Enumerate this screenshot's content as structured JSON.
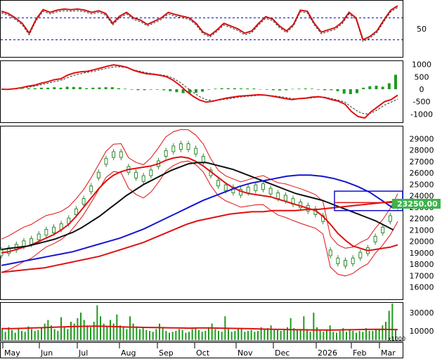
{
  "colors": {
    "price_up": "#2e8b2e",
    "ma_red": "#e01010",
    "ma_black": "#111111",
    "ma_blue": "#1414d0",
    "ma_long_red": "#e01010",
    "band": "#e01010",
    "rsi_line": "#d01010",
    "macd_bar": "#1e9a1e",
    "volume_bar": "#1e9a1e",
    "box_blue": "#1010d0",
    "price_badge_bg": "#3cb44b",
    "dotted": "#0000cc"
  },
  "chart_data": [
    {
      "type": "line",
      "panel": "rsi",
      "yticks": [
        50
      ],
      "reference_lines": [
        70,
        30
      ],
      "ylim": [
        0,
        100
      ],
      "series": [
        {
          "values": [
            82,
            78,
            70,
            60,
            42,
            68,
            85,
            80,
            84,
            86,
            85,
            86,
            84,
            80,
            83,
            78,
            60,
            73,
            80,
            70,
            66,
            58,
            64,
            70,
            80,
            76,
            73,
            70,
            60,
            44,
            38,
            48,
            60,
            55,
            50,
            42,
            46,
            60,
            72,
            68,
            55,
            46,
            58,
            84,
            82,
            60,
            44,
            48,
            52,
            62,
            80,
            70,
            30,
            36,
            46,
            66,
            84,
            92
          ]
        }
      ]
    },
    {
      "type": "line",
      "panel": "macd",
      "yticks": [
        1000,
        500,
        0,
        -500,
        -1000
      ],
      "ylim": [
        -1300,
        1100
      ],
      "series": [
        {
          "values": [
            0,
            -10,
            20,
            60,
            120,
            160,
            240,
            300,
            380,
            420,
            560,
            650,
            700,
            720,
            780,
            850,
            920,
            980,
            940,
            880,
            760,
            680,
            620,
            600,
            560,
            500,
            360,
            160,
            -80,
            -280,
            -440,
            -520,
            -480,
            -420,
            -360,
            -320,
            -280,
            -260,
            -240,
            -220,
            -240,
            -280,
            -330,
            -380,
            -420,
            -380,
            -360,
            -320,
            -300,
            -340,
            -420,
            -480,
            -600,
            -900,
            -1100,
            -1160,
            -900,
            -700,
            -500,
            -420,
            -240
          ]
        },
        {
          "values": [
            0,
            0,
            10,
            40,
            80,
            120,
            180,
            240,
            300,
            360,
            460,
            560,
            620,
            680,
            720,
            780,
            840,
            900,
            900,
            860,
            780,
            720,
            660,
            620,
            580,
            540,
            440,
            280,
            80,
            -120,
            -300,
            -420,
            -460,
            -440,
            -400,
            -360,
            -320,
            -290,
            -270,
            -250,
            -240,
            -260,
            -290,
            -330,
            -380,
            -390,
            -380,
            -350,
            -320,
            -320,
            -380,
            -440,
            -520,
            -720,
            -900,
            -1000,
            -960,
            -820,
            -640,
            -520,
            -400
          ]
        },
        {
          "values": [
            0,
            -10,
            10,
            20,
            40,
            40,
            60,
            60,
            80,
            60,
            100,
            90,
            80,
            40,
            60,
            70,
            80,
            80,
            40,
            20,
            -20,
            -40,
            -40,
            -20,
            -20,
            -40,
            -80,
            -120,
            -160,
            -160,
            -140,
            -100,
            -20,
            20,
            40,
            40,
            40,
            30,
            30,
            30,
            0,
            -20,
            -40,
            -50,
            -40,
            10,
            20,
            30,
            20,
            -20,
            -40,
            -40,
            -80,
            -180,
            -200,
            -160,
            60,
            120,
            140,
            100,
            240,
            580
          ]
        }
      ]
    },
    {
      "type": "line",
      "panel": "price",
      "current_price_label": "23250.00",
      "yticks": [
        29000,
        28000,
        27000,
        26000,
        25000,
        24000,
        23000,
        22000,
        21000,
        20000,
        19000,
        18000,
        17000,
        16000
      ],
      "ylim": [
        15000,
        30000
      ],
      "series": [
        {
          "values": [
            19000,
            19200,
            19500,
            19800,
            20000,
            20400,
            20800,
            21000,
            21300,
            21800,
            22600,
            23500,
            24600,
            25800,
            27000,
            27600,
            27600,
            26300,
            25800,
            25500,
            26000,
            26800,
            27700,
            28100,
            28300,
            28300,
            27900,
            27200,
            26000,
            25100,
            24700,
            24500,
            24300,
            24500,
            24700,
            24800,
            24400,
            24000,
            23800,
            23500,
            23200,
            22900,
            22600,
            22000,
            19000,
            18300,
            18100,
            18300,
            18800,
            19200,
            20200,
            21000,
            22000,
            23250
          ]
        },
        {
          "values": [
            19000,
            19100,
            19300,
            19500,
            19700,
            20000,
            20300,
            20600,
            21000,
            21500,
            22200,
            23000,
            23800,
            24600,
            25300,
            25800,
            26100,
            26300,
            26400,
            26500,
            26600,
            26800,
            27100,
            27300,
            27400,
            27300,
            27000,
            26600,
            26100,
            25600,
            25100,
            24700,
            24400,
            24200,
            24100,
            24000,
            23900,
            23700,
            23500,
            23300,
            23100,
            22900,
            22700,
            22200,
            21500,
            20700,
            20100,
            19600,
            19400,
            19200,
            19300,
            19400,
            19500,
            19700
          ]
        },
        {
          "values": [
            19300,
            19400,
            19500,
            19600,
            19800,
            20000,
            20200,
            20500,
            20800,
            21200,
            21700,
            22200,
            22800,
            23400,
            24000,
            24500,
            25000,
            25400,
            25800,
            26200,
            26500,
            26800,
            26900,
            26900,
            26700,
            26500,
            26300,
            26000,
            25700,
            25400,
            25100,
            24800,
            24500,
            24200,
            24000,
            23800,
            23600,
            23300,
            23000,
            22700,
            22400,
            22100,
            21800,
            21400,
            21000
          ]
        },
        {
          "values": [
            17900,
            18100,
            18300,
            18500,
            18700,
            18900,
            19100,
            19400,
            19700,
            20000,
            20300,
            20700,
            21100,
            21600,
            22100,
            22600,
            23100,
            23600,
            24000,
            24400,
            24800,
            25100,
            25300,
            25500,
            25700,
            25800,
            25800,
            25700,
            25500,
            25200,
            24800,
            24300,
            23600,
            22900
          ]
        },
        {
          "values": [
            17300,
            17400,
            17500,
            17600,
            17700,
            17900,
            18100,
            18300,
            18500,
            18700,
            19000,
            19300,
            19600,
            19900,
            20300,
            20700,
            21100,
            21500,
            21800,
            22000,
            22200,
            22400,
            22500,
            22600,
            22600,
            22700,
            22700,
            22700,
            22800,
            22800,
            22900,
            23000,
            23100,
            23200,
            23300,
            23400,
            23500
          ]
        }
      ]
    },
    {
      "type": "bar",
      "panel": "volume",
      "unit_label": "x1000",
      "yticks": [
        30000,
        10000
      ],
      "ylim": [
        0,
        40000
      ],
      "values": [
        12000,
        9000,
        14000,
        11000,
        8000,
        13000,
        10000,
        9000,
        15000,
        12000,
        10000,
        11000,
        14000,
        18000,
        22000,
        16000,
        12000,
        10000,
        25000,
        14000,
        12000,
        20000,
        18000,
        24000,
        30000,
        22000,
        16000,
        14000,
        20000,
        38000,
        26000,
        18000,
        15000,
        22000,
        18000,
        28000,
        16000,
        14000,
        12000,
        26000,
        18000,
        15000,
        12000,
        14000,
        11000,
        10000,
        9000,
        12000,
        18000,
        14000,
        10000,
        8000,
        9000,
        10000,
        12000,
        11000,
        8000,
        9000,
        12000,
        14000,
        11000,
        9000,
        10000,
        14000,
        18000,
        12000,
        10000,
        9000,
        26000,
        12000,
        9000,
        10000,
        13000,
        12000,
        9000,
        10000,
        11000,
        9000,
        10000,
        14000,
        12000,
        13000,
        16000,
        12000,
        11000,
        10000,
        12000,
        14000,
        24000,
        13000,
        11000,
        12000,
        26000,
        12000,
        9000,
        30000,
        14000,
        10000,
        9000,
        11000,
        16000,
        9000,
        8000,
        10000,
        13000,
        9000,
        11000,
        10000,
        8000,
        10000,
        9000,
        13000,
        10000,
        10000,
        12000,
        12000,
        16000,
        20000,
        32000,
        40000,
        12000
      ],
      "series": [
        {
          "values": [
            12500,
            12500,
            12800,
            13200,
            13500,
            14000,
            14400,
            14800,
            15000,
            15200,
            15000,
            14600,
            14200,
            14000,
            13800,
            13600,
            13400,
            13200,
            13000,
            13200,
            13200,
            13000,
            12800,
            12600,
            12400,
            12000,
            11800,
            11600,
            11400,
            11200,
            11000,
            11000,
            11000,
            11200,
            11400,
            11600,
            11800,
            11600,
            11500
          ]
        }
      ]
    }
  ],
  "x_axis": {
    "months": [
      "May",
      "Jun",
      "Jul",
      "Aug",
      "Sep",
      "Oct",
      "Nov",
      "Dec",
      "2026",
      "Feb",
      "Mar"
    ]
  }
}
